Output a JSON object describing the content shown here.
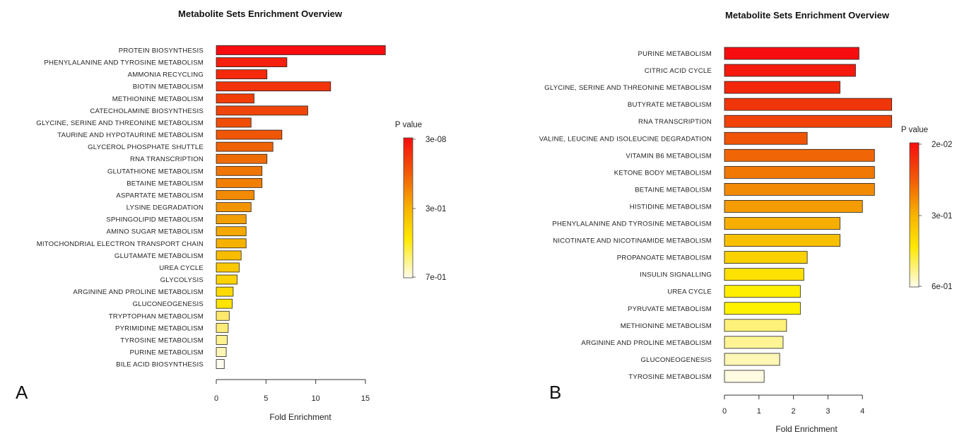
{
  "chart_data": [
    {
      "panel_label": "A",
      "type": "bar",
      "orientation": "horizontal",
      "title": "Metabolite Sets Enrichment Overview",
      "xlabel": "Fold Enrichment",
      "xlim": [
        0,
        17
      ],
      "xticks": [
        "0",
        "5",
        "10",
        "15"
      ],
      "legend": {
        "title": "P value",
        "top": "3e-08",
        "mid": "3e-01",
        "bottom": "7e-01",
        "placement": "right"
      },
      "categories": [
        "PROTEIN BIOSYNTHESIS",
        "PHENYLALANINE AND TYROSINE METABOLISM",
        "AMMONIA RECYCLING",
        "BIOTIN METABOLISM",
        "METHIONINE METABOLISM",
        "CATECHOLAMINE BIOSYNTHESIS",
        "GLYCINE, SERINE AND THREONINE METABOLISM",
        "TAURINE AND HYPOTAURINE METABOLISM",
        "GLYCEROL PHOSPHATE SHUTTLE",
        "RNA TRANSCRIPTION",
        "GLUTATHIONE METABOLISM",
        "BETAINE METABOLISM",
        "ASPARTATE METABOLISM",
        "LYSINE DEGRADATION",
        "SPHINGOLIPID METABOLISM",
        "AMINO SUGAR METABOLISM",
        "MITOCHONDRIAL ELECTRON TRANSPORT CHAIN",
        "GLUTAMATE METABOLISM",
        "UREA CYCLE",
        "GLYCOLYSIS",
        "ARGININE AND PROLINE METABOLISM",
        "GLUCONEOGENESIS",
        "TRYPTOPHAN METABOLISM",
        "PYRIMIDINE METABOLISM",
        "TYROSINE METABOLISM",
        "PURINE METABOLISM",
        "BILE ACID BIOSYNTHESIS"
      ],
      "values": [
        17.0,
        7.1,
        5.1,
        11.5,
        3.8,
        9.2,
        3.5,
        6.6,
        5.7,
        5.1,
        4.6,
        4.6,
        3.8,
        3.5,
        3.0,
        3.0,
        3.0,
        2.5,
        2.3,
        2.1,
        1.7,
        1.6,
        1.3,
        1.2,
        1.1,
        1.0,
        0.8
      ],
      "colors": [
        "#f70d0f",
        "#f5200d",
        "#f5290b",
        "#f3330b",
        "#f33d09",
        "#f04509",
        "#f04e07",
        "#ef5606",
        "#ef6206",
        "#ef6c05",
        "#f07504",
        "#f07f04",
        "#f28a03",
        "#f39402",
        "#f39e01",
        "#f5a801",
        "#f7b200",
        "#f9bd00",
        "#fbc800",
        "#fdd200",
        "#fedb00",
        "#fee402",
        "#fee96a",
        "#feec7a",
        "#fef290",
        "#fef6b4",
        "#fefcec"
      ]
    },
    {
      "panel_label": "B",
      "type": "bar",
      "orientation": "horizontal",
      "title": "Metabolite Sets Enrichment Overview",
      "xlabel": "Fold Enrichment",
      "xlim": [
        0,
        4.8
      ],
      "xticks": [
        "0",
        "1",
        "2",
        "3",
        "4"
      ],
      "legend": {
        "title": "P value",
        "top": "2e-02",
        "mid": "3e-01",
        "bottom": "6e-01",
        "placement": "right"
      },
      "categories": [
        "PURINE METABOLISM",
        "CITRIC ACID CYCLE",
        "GLYCINE, SERINE AND THREONINE METABOLISM",
        "BUTYRATE METABOLISM",
        "RNA TRANSCRIPTION",
        "VALINE, LEUCINE AND ISOLEUCINE DEGRADATION",
        "VITAMIN B6 METABOLISM",
        "KETONE BODY METABOLISM",
        "BETAINE METABOLISM",
        "HISTIDINE METABOLISM",
        "PHENYLALANINE AND TYROSINE METABOLISM",
        "NICOTINATE AND NICOTINAMIDE METABOLISM",
        "PROPANOATE METABOLISM",
        "INSULIN SIGNALLING",
        "UREA CYCLE",
        "PYRUVATE METABOLISM",
        "METHIONINE METABOLISM",
        "ARGININE AND PROLINE METABOLISM",
        "GLUCONEOGENESIS",
        "TYROSINE METABOLISM"
      ],
      "values": [
        3.9,
        3.8,
        3.35,
        4.85,
        4.85,
        2.4,
        4.35,
        4.35,
        4.35,
        4.0,
        3.35,
        3.35,
        2.4,
        2.3,
        2.2,
        2.2,
        1.8,
        1.7,
        1.6,
        1.15
      ],
      "colors": [
        "#f70d0f",
        "#f51a0d",
        "#f3280b",
        "#f1350a",
        "#f04209",
        "#ef5407",
        "#f06606",
        "#f17805",
        "#f38a03",
        "#f59c02",
        "#f7ae01",
        "#f9c000",
        "#fbd100",
        "#fde100",
        "#feee00",
        "#fef200",
        "#fef27a",
        "#fef494",
        "#fef6b4",
        "#fefbe2"
      ]
    }
  ]
}
